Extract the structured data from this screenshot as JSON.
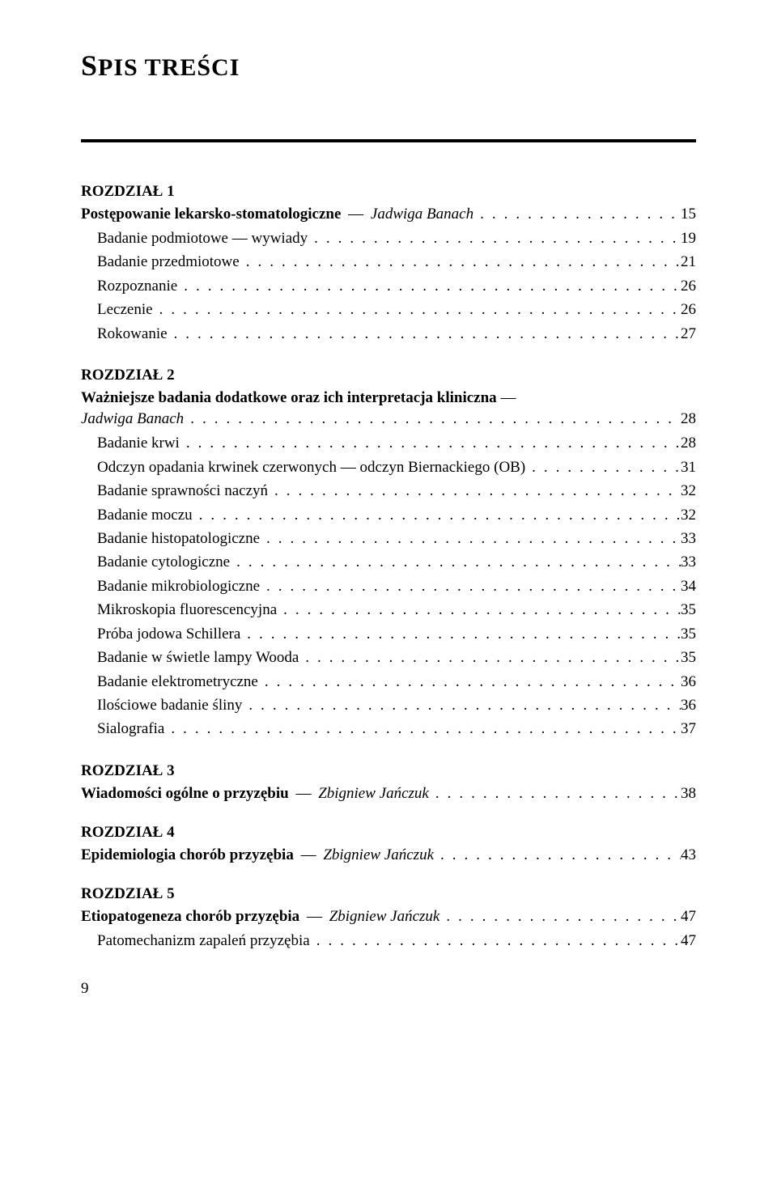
{
  "title_first_letter": "S",
  "title_rest": "PIS TREŚCI",
  "leader_dots": "................................................",
  "page_number": "9",
  "chapters": [
    {
      "heading": "ROZDZIAŁ 1",
      "title_bold": "Postępowanie lekarsko-stomatologiczne",
      "title_italic": "Jadwiga Banach",
      "title_page": "15",
      "entries": [
        {
          "label": "Badanie podmiotowe — wywiady",
          "page": "19",
          "indent": true
        },
        {
          "label": "Badanie przedmiotowe",
          "page": "21",
          "indent": true
        },
        {
          "label": "Rozpoznanie",
          "page": "26",
          "indent": true
        },
        {
          "label": "Leczenie",
          "page": "26",
          "indent": true
        },
        {
          "label": "Rokowanie",
          "page": "27",
          "indent": true
        }
      ]
    },
    {
      "heading": "ROZDZIAŁ 2",
      "title_bold": "Ważniejsze badania dodatkowe oraz ich interpretacja kliniczna",
      "title_italic": "Jadwiga Banach",
      "title_page": "28",
      "title_wrap": true,
      "entries": [
        {
          "label": "Badanie krwi",
          "page": "28",
          "indent": true
        },
        {
          "label": "Odczyn opadania krwinek czerwonych — odczyn Biernackiego (OB)",
          "page": "31",
          "indent": true
        },
        {
          "label": "Badanie sprawności naczyń",
          "page": "32",
          "indent": true
        },
        {
          "label": "Badanie moczu",
          "page": "32",
          "indent": true
        },
        {
          "label": "Badanie histopatologiczne",
          "page": "33",
          "indent": true
        },
        {
          "label": "Badanie cytologiczne",
          "page": "33",
          "indent": true
        },
        {
          "label": "Badanie mikrobiologiczne",
          "page": "34",
          "indent": true
        },
        {
          "label": "Mikroskopia fluorescencyjna",
          "page": "35",
          "indent": true
        },
        {
          "label": "Próba jodowa Schillera",
          "page": "35",
          "indent": true
        },
        {
          "label": "Badanie w świetle lampy Wooda",
          "page": "35",
          "indent": true
        },
        {
          "label": "Badanie elektrometryczne",
          "page": "36",
          "indent": true
        },
        {
          "label": "Ilościowe badanie śliny",
          "page": "36",
          "indent": true
        },
        {
          "label": "Sialografia",
          "page": "37",
          "indent": true
        }
      ]
    },
    {
      "heading": "ROZDZIAŁ 3",
      "title_bold": "Wiadomości ogólne o przyzębiu",
      "title_italic": "Zbigniew Jańczuk",
      "title_page": "38",
      "entries": []
    },
    {
      "heading": "ROZDZIAŁ 4",
      "title_bold": "Epidemiologia chorób przyzębia",
      "title_italic": "Zbigniew Jańczuk",
      "title_page": "43",
      "entries": []
    },
    {
      "heading": "ROZDZIAŁ 5",
      "title_bold": "Etiopatogeneza chorób przyzębia",
      "title_italic": "Zbigniew Jańczuk",
      "title_page": "47",
      "entries": [
        {
          "label": "Patomechanizm zapaleń przyzębia",
          "page": "47",
          "indent": true
        }
      ]
    }
  ]
}
